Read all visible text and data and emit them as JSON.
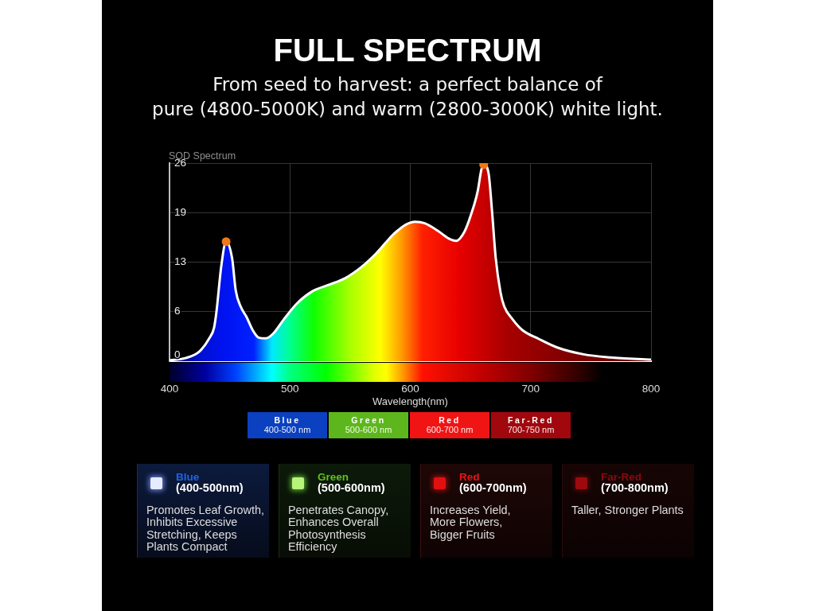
{
  "chart_data": {
    "type": "area",
    "title": "FULL SPECTRUM",
    "subtitle": "From seed to harvest: a perfect balance of\npure (4800-5000K) and warm (2800-3000K) white light.",
    "xlabel": "Wavelength(nm)",
    "ylabel": "SQD Spectrum",
    "xlim": [
      400,
      800
    ],
    "xticks": [
      400,
      500,
      600,
      700,
      800
    ],
    "ylim": [
      0,
      26
    ],
    "yticks": [
      0,
      {
        "value": 6.5,
        "label": "6"
      },
      13,
      {
        "value": 19.5,
        "label": "19"
      },
      26
    ],
    "grid": true,
    "legend": false,
    "series": [
      {
        "color": "#ffffff",
        "x": [
          400,
          413,
          425,
          433,
          437,
          439,
          443,
          447,
          452,
          455,
          459,
          464,
          469,
          474,
          480,
          486,
          495,
          506,
          519,
          532,
          546,
          559,
          572,
          585,
          590,
          596,
          604,
          612,
          623,
          632,
          638,
          645,
          651,
          656,
          659,
          661,
          665,
          668,
          671,
          675,
          678,
          685,
          693,
          707,
          722,
          744,
          766,
          800
        ],
        "values": [
          0.1,
          0.4,
          1.3,
          3.0,
          4.4,
          6.5,
          12.5,
          15.7,
          13.5,
          9.3,
          7.2,
          5.8,
          4.1,
          3.1,
          3.0,
          3.6,
          5.5,
          7.6,
          9.2,
          10.0,
          10.9,
          12.3,
          14.2,
          16.5,
          17.2,
          17.9,
          18.3,
          18.1,
          17.1,
          16.1,
          15.8,
          17.0,
          19.5,
          22.3,
          25.1,
          25.8,
          24.7,
          19.5,
          13.5,
          9.0,
          7.2,
          5.5,
          4.1,
          2.9,
          1.8,
          0.9,
          0.5,
          0.2
        ]
      },
      {
        "type": "scatter",
        "marker": "circle",
        "color": "#f07818",
        "x": [
          447,
          661
        ],
        "values": [
          15.7,
          25.8
        ]
      }
    ],
    "annotations": [
      "Blue",
      "400-500 nm",
      "Green",
      "500-600 nm",
      "Red",
      "600-700 nm",
      "Far-Red",
      "700-750 nm",
      "Blue",
      "(400-500nm)",
      "Promotes Leaf Growth,\nInhibits Excessive\nStretching, Keeps\nPlants Compact",
      "Green",
      "(500-600nm)",
      "Penetrates Canopy,\nEnhances Overall\nPhotosynthesis\nEfficiency",
      "Red",
      "(600-700nm)",
      "Increases Yield,\nMore Flowers,\nBigger Fruits",
      "Far-Red",
      "(700-800nm)",
      "Taller, Stronger Plants"
    ]
  }
}
